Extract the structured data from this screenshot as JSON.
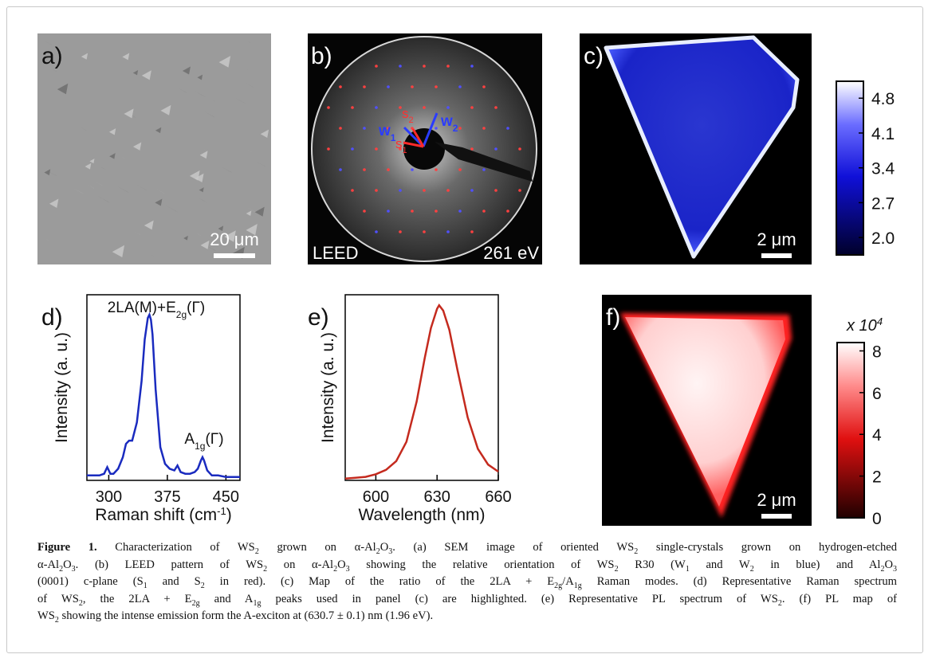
{
  "figure": {
    "a": {
      "label": "a)",
      "scale_bar": "20 μm"
    },
    "b": {
      "label": "b)",
      "technique": "LEED",
      "energy": "261 eV",
      "w1": [
        "w",
        {
          "sub": "1"
        }
      ],
      "w2": [
        "w",
        {
          "sub": "2"
        }
      ],
      "s1": [
        "s",
        {
          "sub": "1"
        }
      ],
      "s2": [
        "s",
        {
          "sub": "2"
        }
      ]
    },
    "c": {
      "label": "c)",
      "scale_bar": "2 μm",
      "colorbar": {
        "lim": [
          1.65,
          5.14
        ],
        "ticks": [
          {
            "value": 2,
            "label": "2.0"
          },
          2.7,
          3.4,
          4.1,
          4.8
        ]
      }
    },
    "d": {
      "label": "d)",
      "color": "#1a2bbf",
      "x_label": [
        "Raman shift (cm",
        {
          "sup": "-1"
        },
        ")"
      ],
      "y_label": "Intensity (a. u.)",
      "peak_label_1": [
        "2LA(M)+E",
        {
          "sub": "2g"
        },
        "(Γ)"
      ],
      "peak_label_2": [
        "A",
        {
          "sub": "1g"
        },
        "(Γ)"
      ],
      "xlim": [
        272,
        468
      ],
      "ylim": [
        0,
        1.12
      ],
      "xticks": [
        300,
        375,
        450
      ],
      "x": [
        272,
        280,
        288,
        294,
        298,
        302,
        306,
        312,
        318,
        322,
        326,
        330,
        336,
        342,
        346,
        350,
        352,
        354,
        356,
        360,
        366,
        372,
        378,
        384,
        388,
        392,
        398,
        404,
        410,
        414,
        418,
        420,
        422,
        426,
        432,
        440,
        450,
        460,
        468
      ],
      "values": [
        0.03,
        0.03,
        0.03,
        0.04,
        0.08,
        0.04,
        0.04,
        0.07,
        0.14,
        0.22,
        0.24,
        0.24,
        0.35,
        0.6,
        0.85,
        0.98,
        1.0,
        0.97,
        0.88,
        0.55,
        0.2,
        0.1,
        0.07,
        0.06,
        0.09,
        0.05,
        0.04,
        0.04,
        0.05,
        0.07,
        0.12,
        0.14,
        0.12,
        0.06,
        0.03,
        0.03,
        0.02,
        0.02,
        0.02
      ]
    },
    "e": {
      "label": "e)",
      "color": "#c42a1e",
      "x_label": "Wavelength (nm)",
      "y_label": "Intensity (a. u.)",
      "xlim": [
        585,
        660
      ],
      "ylim": [
        0,
        1.06
      ],
      "xticks": [
        600,
        630,
        660
      ],
      "x": [
        585,
        590,
        595,
        600,
        605,
        610,
        615,
        620,
        624,
        627,
        630,
        631,
        633,
        636,
        640,
        645,
        650,
        655,
        660
      ],
      "values": [
        0.01,
        0.015,
        0.02,
        0.035,
        0.06,
        0.11,
        0.22,
        0.45,
        0.7,
        0.87,
        0.98,
        1.0,
        0.97,
        0.86,
        0.63,
        0.36,
        0.18,
        0.09,
        0.05
      ]
    },
    "f": {
      "label": "f)",
      "scale_bar": "2 μm",
      "colorbar": {
        "multiplier": [
          "x 10",
          {
            "sup": "4"
          }
        ],
        "lim": [
          0,
          8.4
        ],
        "ticks": [
          0,
          2,
          4,
          6,
          8
        ]
      }
    }
  },
  "caption": {
    "lines": [
      [
        {
          "bold": "Figure 1."
        },
        " Characterization of WS",
        {
          "sub": "2"
        },
        " grown on α-Al",
        {
          "sub": "2"
        },
        "O",
        {
          "sub": "3"
        },
        ". (a) SEM image of oriented WS",
        {
          "sub": "2"
        },
        " single-crystals grown on hydrogen-etched"
      ],
      [
        "α-Al",
        {
          "sub": "2"
        },
        "O",
        {
          "sub": "3"
        },
        ". (b) LEED pattern of WS",
        {
          "sub": "2"
        },
        " on α-Al",
        {
          "sub": "2"
        },
        "O",
        {
          "sub": "3"
        },
        " showing the relative orientation of WS",
        {
          "sub": "2"
        },
        " R30 (W",
        {
          "sub": "1"
        },
        " and W",
        {
          "sub": "2"
        },
        " in blue) and Al",
        {
          "sub": "2"
        },
        "O",
        {
          "sub": "3"
        }
      ],
      [
        "(0001) c-plane (S",
        {
          "sub": "1"
        },
        " and S",
        {
          "sub": "2"
        },
        " in red). (c) Map of the ratio of the 2LA + E",
        {
          "sub": "2g"
        },
        "/A",
        {
          "sub": "1g"
        },
        " Raman modes. (d) Representative Raman spectrum"
      ],
      [
        "of WS",
        {
          "sub": "2"
        },
        ", the 2LA + E",
        {
          "sub": "2g"
        },
        " and A",
        {
          "sub": "1g"
        },
        " peaks used in panel (c) are highlighted. (e) Representative PL spectrum of WS",
        {
          "sub": "2"
        },
        ". (f) PL map of"
      ],
      [
        "WS",
        {
          "sub": "2"
        },
        " showing the intense emission form the A-exciton at (630.7 ± 0.1) nm (1.96 eV)."
      ]
    ]
  }
}
